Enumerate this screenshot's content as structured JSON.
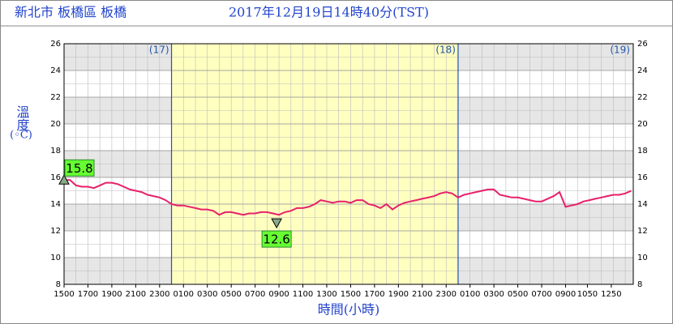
{
  "chart_data": {
    "type": "line",
    "title": "新北市 板橋區 板橋",
    "subtitle": "2017年12月19日14時40分(TST)",
    "y_label": "溫度",
    "y_unit": "(◦C)",
    "x_label": "時間(小時)",
    "xlim": [
      0,
      47.67
    ],
    "ylim": [
      8,
      26
    ],
    "yticks": [
      8,
      10,
      12,
      14,
      16,
      18,
      20,
      22,
      24,
      26
    ],
    "xticks": [
      {
        "value": 0,
        "label": "1500"
      },
      {
        "value": 2,
        "label": "1700"
      },
      {
        "value": 4,
        "label": "1900"
      },
      {
        "value": 6,
        "label": "2100"
      },
      {
        "value": 8,
        "label": "2300"
      },
      {
        "value": 10,
        "label": "0100"
      },
      {
        "value": 12,
        "label": "0300"
      },
      {
        "value": 14,
        "label": "0500"
      },
      {
        "value": 16,
        "label": "0700"
      },
      {
        "value": 18,
        "label": "0900"
      },
      {
        "value": 20,
        "label": "1100"
      },
      {
        "value": 22,
        "label": "1300"
      },
      {
        "value": 24,
        "label": "1500"
      },
      {
        "value": 26,
        "label": "1700"
      },
      {
        "value": 28,
        "label": "1900"
      },
      {
        "value": 30,
        "label": "2100"
      },
      {
        "value": 32,
        "label": "2300"
      },
      {
        "value": 34,
        "label": "0100"
      },
      {
        "value": 36,
        "label": "0300"
      },
      {
        "value": 38,
        "label": "0500"
      },
      {
        "value": 40,
        "label": "0700"
      },
      {
        "value": 42,
        "label": "0900"
      },
      {
        "value": 43.83,
        "label": "1050"
      },
      {
        "value": 45.83,
        "label": "1250"
      }
    ],
    "day_boundaries": [
      9,
      33
    ],
    "day_labels": [
      "(17)",
      "(18)",
      "(19)"
    ],
    "shade_color": "#ffffc0",
    "grid": true,
    "series": [
      {
        "name": "溫度",
        "color": "#e8206a",
        "x": [
          0,
          0.5,
          1,
          1.5,
          2,
          2.5,
          3,
          3.5,
          4,
          4.5,
          5,
          5.5,
          6,
          6.5,
          7,
          7.5,
          8,
          8.5,
          9,
          9.5,
          10,
          10.5,
          11,
          11.5,
          12,
          12.5,
          13,
          13.5,
          14,
          14.5,
          15,
          15.5,
          16,
          16.5,
          17,
          17.5,
          18,
          18.5,
          19,
          19.5,
          20,
          20.5,
          21,
          21.5,
          22,
          22.5,
          23,
          23.5,
          24,
          24.5,
          25,
          25.5,
          26,
          26.5,
          27,
          27.5,
          28,
          28.5,
          29,
          29.5,
          30,
          30.5,
          31,
          31.5,
          32,
          32.5,
          33,
          33.5,
          34,
          34.5,
          35,
          35.5,
          36,
          36.5,
          37,
          37.5,
          38,
          38.5,
          39,
          39.5,
          40,
          40.5,
          41,
          41.5,
          42,
          42.5,
          43,
          43.5,
          44,
          44.5,
          45,
          45.5,
          46,
          46.5,
          47,
          47.5
        ],
        "values": [
          15.8,
          15.8,
          15.4,
          15.3,
          15.3,
          15.2,
          15.4,
          15.6,
          15.6,
          15.5,
          15.3,
          15.1,
          15.0,
          14.9,
          14.7,
          14.6,
          14.5,
          14.3,
          14.0,
          13.9,
          13.9,
          13.8,
          13.7,
          13.6,
          13.6,
          13.5,
          13.2,
          13.4,
          13.4,
          13.3,
          13.2,
          13.3,
          13.3,
          13.4,
          13.4,
          13.3,
          13.2,
          13.4,
          13.5,
          13.7,
          13.7,
          13.8,
          14.0,
          14.3,
          14.2,
          14.1,
          14.2,
          14.2,
          14.1,
          14.3,
          14.3,
          14.0,
          13.9,
          13.7,
          14.0,
          13.6,
          13.9,
          14.1,
          14.2,
          14.3,
          14.4,
          14.5,
          14.6,
          14.8,
          14.9,
          14.8,
          14.5,
          14.7,
          14.8,
          14.9,
          15.0,
          15.1,
          15.1,
          14.7,
          14.6,
          14.5,
          14.5,
          14.4,
          14.3,
          14.2,
          14.2,
          14.4,
          14.6,
          14.9,
          13.8,
          13.9,
          14.0,
          14.2,
          14.3,
          14.4,
          14.5,
          14.6,
          14.7,
          14.7,
          14.8,
          15.0
        ]
      }
    ],
    "annotations": [
      {
        "value": 15.8,
        "label": "15.8",
        "x": 0,
        "kind": "max"
      },
      {
        "value": 12.6,
        "label": "12.6",
        "x": 17.8,
        "kind": "min"
      }
    ],
    "annotation_color": "#66ff33"
  }
}
